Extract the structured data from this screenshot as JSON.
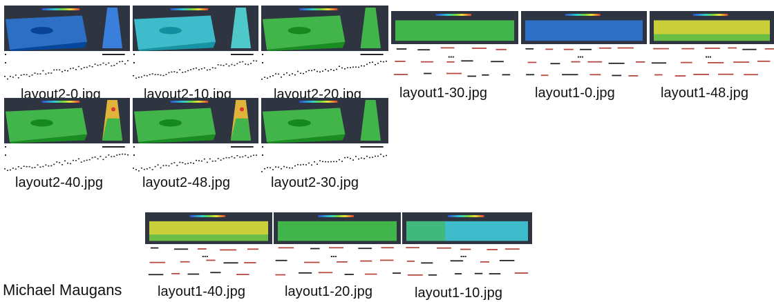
{
  "author": "Michael Maugans",
  "images": [
    {
      "caption": "layout2-0.jpg",
      "style": "prism",
      "palette": "blue"
    },
    {
      "caption": "layout2-10.jpg",
      "style": "prism",
      "palette": "cyan"
    },
    {
      "caption": "layout2-20.jpg",
      "style": "prism",
      "palette": "green"
    },
    {
      "caption": "layout1-30.jpg",
      "style": "slab",
      "palette": "green"
    },
    {
      "caption": "layout1-0.jpg",
      "style": "slab",
      "palette": "blue"
    },
    {
      "caption": "layout1-48.jpg",
      "style": "slab",
      "palette": "yellow"
    },
    {
      "caption": "layout2-40.jpg",
      "style": "prism",
      "palette": "green"
    },
    {
      "caption": "layout2-48.jpg",
      "style": "prism",
      "palette": "green"
    },
    {
      "caption": "layout2-30.jpg",
      "style": "prism",
      "palette": "green"
    },
    {
      "caption": "layout1-40.jpg",
      "style": "slab",
      "palette": "yellow"
    },
    {
      "caption": "layout1-20.jpg",
      "style": "slab",
      "palette": "green"
    },
    {
      "caption": "layout1-10.jpg",
      "style": "slab",
      "palette": "cyan"
    }
  ],
  "colors": {
    "frame": "#2f3540",
    "blue": "#2d6fc4",
    "cyan": "#3fbccb",
    "green": "#42b54a",
    "yellow": "#c9cf3a",
    "tower_hot": "#e0b43a",
    "marker_red": "#b5483f"
  }
}
